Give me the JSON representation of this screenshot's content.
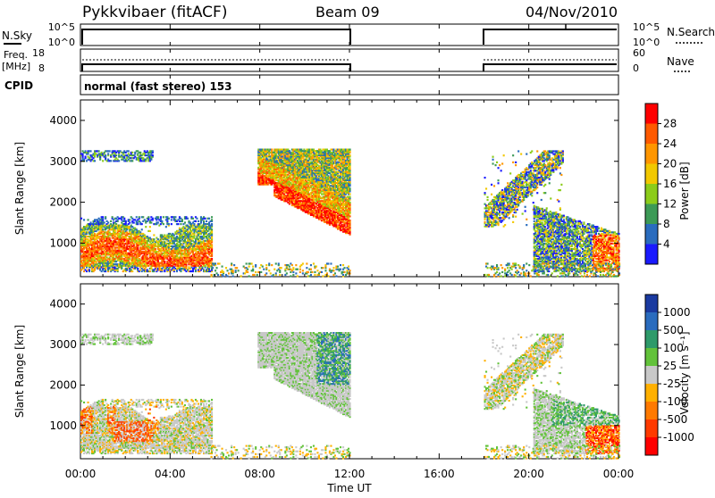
{
  "header": {
    "title": "Pykkvibaer (fitACF)",
    "beam": "Beam 09",
    "date": "04/Nov/2010"
  },
  "params_panel": {
    "nsky_label": "N.Sky",
    "nsky_ticks": [
      "10^5",
      "10^0"
    ],
    "nsearch_label": "N.Search",
    "nsearch_ticks": [
      "10^5",
      "10^0"
    ],
    "freq_label": "Freq.",
    "freq_unit": "[MHz]",
    "freq_ticks": [
      "18",
      "8"
    ],
    "nave_label": "Nave",
    "nave_ticks": [
      "60",
      "0"
    ],
    "cpid_label": "CPID",
    "cpid_text": "normal (fast stereo) 153"
  },
  "chart_data": [
    {
      "type": "heatmap",
      "name": "power",
      "ylabel": "Slant Range [km]",
      "yticks": [
        "4000",
        "3000",
        "2000",
        "1000"
      ],
      "yticks_values": [
        4000,
        3000,
        2000,
        1000
      ],
      "ylim": [
        180,
        4500
      ],
      "xlim": [
        0,
        24
      ],
      "colorbar_label": "Power [dB]",
      "colorbar_ticks": [
        "28",
        "24",
        "20",
        "16",
        "12",
        "8",
        "4"
      ],
      "colorbar_colors": [
        "#ff0000",
        "#ff5a00",
        "#ff9600",
        "#f2c800",
        "#8ccc1a",
        "#3c9a56",
        "#2a6cbe",
        "#1a1aff"
      ],
      "regions": [
        {
          "t": [
            0.0,
            5.8
          ],
          "r": [
            300,
            1600
          ],
          "level": "mixed-warm"
        },
        {
          "t": [
            0.0,
            3.2
          ],
          "r": [
            3000,
            3250
          ],
          "level": "low"
        },
        {
          "t": [
            8.0,
            12.0
          ],
          "r": [
            1200,
            3250
          ],
          "level": "high"
        },
        {
          "t": [
            18.0,
            21.5
          ],
          "r": [
            1500,
            3200
          ],
          "level": "mid"
        },
        {
          "t": [
            20.5,
            24.0
          ],
          "r": [
            300,
            1900
          ],
          "level": "mid"
        }
      ]
    },
    {
      "type": "heatmap",
      "name": "velocity",
      "ylabel": "Slant Range [km]",
      "xlabel": "Time UT",
      "xticks": [
        "00:00",
        "04:00",
        "08:00",
        "12:00",
        "16:00",
        "20:00",
        "00:00"
      ],
      "xticks_values": [
        0,
        4,
        8,
        12,
        16,
        20,
        24
      ],
      "yticks": [
        "4000",
        "3000",
        "2000",
        "1000"
      ],
      "yticks_values": [
        4000,
        3000,
        2000,
        1000
      ],
      "ylim": [
        180,
        4500
      ],
      "xlim": [
        0,
        24
      ],
      "colorbar_label": "Velocity [m s⁻¹]",
      "colorbar_ticks": [
        "1000",
        "500",
        "100",
        "25",
        "-25",
        "-100",
        "-500",
        "-1000"
      ],
      "colorbar_colors": [
        "#1a3aa0",
        "#2a6cbe",
        "#2e9a6a",
        "#62c23a",
        "#c8c8c8",
        "#ffb000",
        "#ff7a00",
        "#ff3a00",
        "#ff0000"
      ]
    }
  ],
  "operation": {
    "segments_hours": [
      [
        0,
        12
      ],
      [
        18,
        24
      ]
    ]
  }
}
